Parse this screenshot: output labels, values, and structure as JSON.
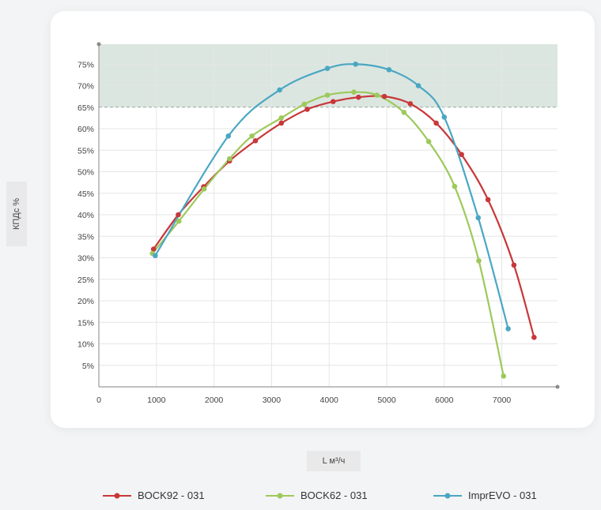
{
  "chart_data": {
    "type": "line",
    "title": "",
    "xlabel": "L м³/ч",
    "ylabel": "КПДс %",
    "xlim": [
      0,
      8000
    ],
    "ylim": [
      0,
      80
    ],
    "x_ticks": [
      0,
      1000,
      2000,
      3000,
      4000,
      5000,
      6000,
      7000
    ],
    "y_ticks": [
      5,
      10,
      15,
      20,
      25,
      30,
      35,
      40,
      45,
      50,
      55,
      60,
      65,
      70,
      75
    ],
    "highlight_band": [
      65,
      80
    ],
    "grid": true,
    "legend_position": "bottom",
    "series": [
      {
        "name": "BOCK92 - 031",
        "color": "#c8373a",
        "x": [
          950,
          1380,
          1820,
          2270,
          2720,
          3170,
          3620,
          4070,
          4510,
          4960,
          5410,
          5860,
          6300,
          6760,
          7210,
          7560
        ],
        "y": [
          32,
          40,
          46.5,
          52.5,
          57.2,
          61.3,
          64.5,
          66.3,
          67.3,
          67.5,
          65.8,
          61.3,
          54,
          43.5,
          28.3,
          11.5
        ]
      },
      {
        "name": "BOCK62 - 031",
        "color": "#9dc95b",
        "x": [
          930,
          1390,
          1830,
          2270,
          2660,
          3170,
          3570,
          3970,
          4430,
          4830,
          5300,
          5730,
          6180,
          6600,
          7030
        ],
        "y": [
          31,
          38.5,
          46,
          53,
          58.3,
          62.5,
          65.7,
          67.8,
          68.5,
          67.8,
          63.8,
          57,
          46.6,
          29.3,
          2.5
        ]
      },
      {
        "name": "ImprEVO - 031",
        "color": "#4aa7c3",
        "x": [
          980,
          2250,
          3140,
          3970,
          4460,
          5040,
          5550,
          6000,
          6590,
          7110
        ],
        "y": [
          30.5,
          58.3,
          69,
          74,
          75,
          73.7,
          70,
          62.7,
          39.3,
          13.5
        ]
      }
    ]
  }
}
